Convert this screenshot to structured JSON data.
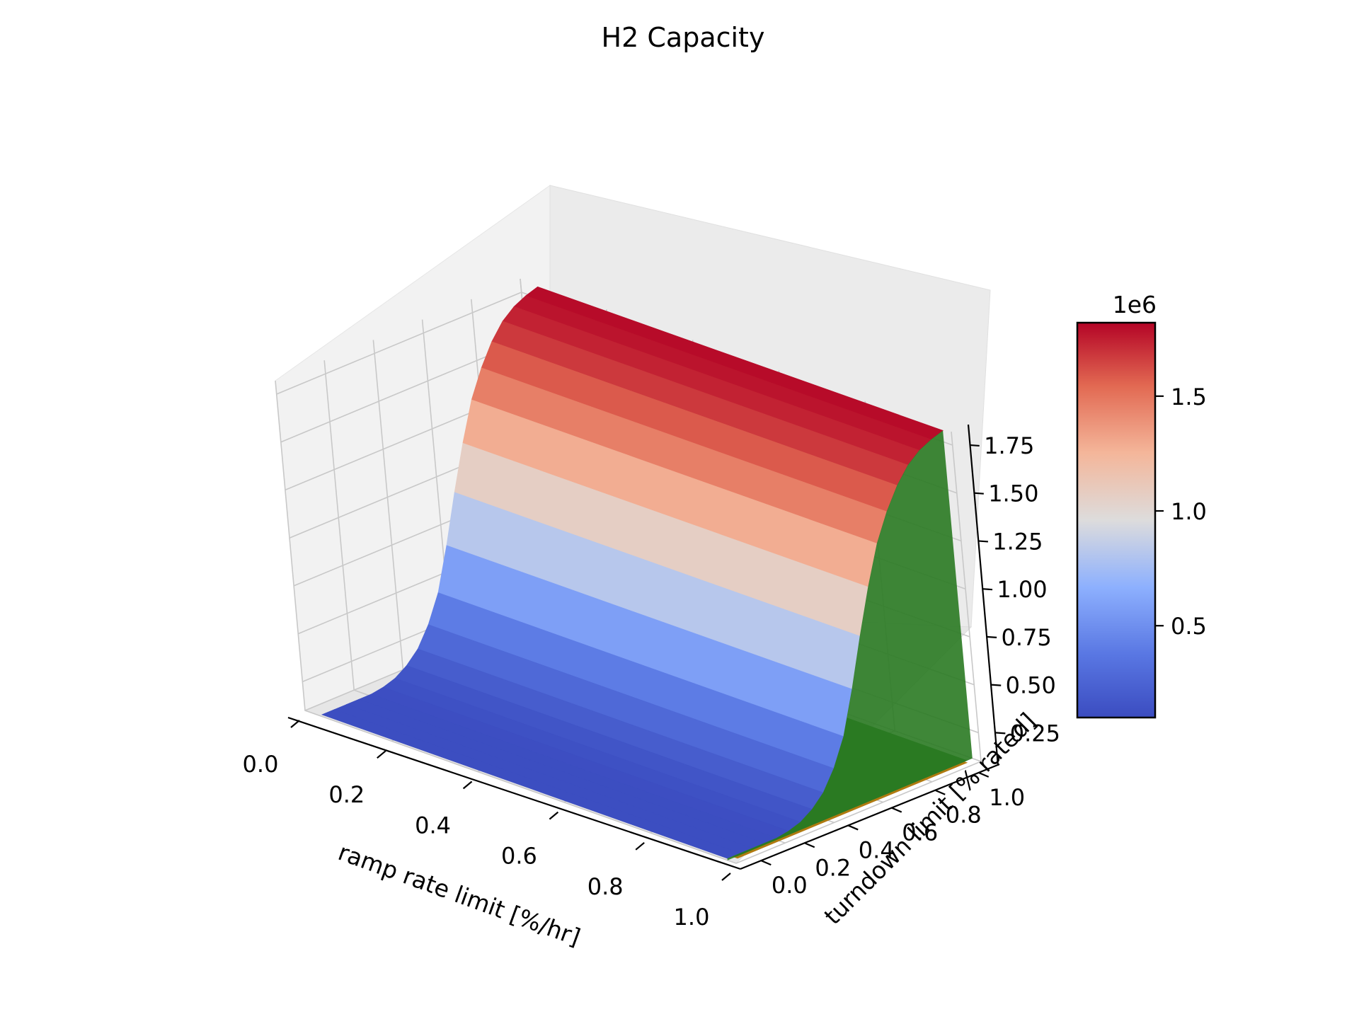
{
  "chart_data": {
    "type": "surface3d",
    "title": "H2 Capacity",
    "xlabel": "ramp rate limit [%/hr]",
    "ylabel": "turndown limit [% rated]",
    "zlabel": "",
    "x_ticks": [
      "0.0",
      "0.2",
      "0.4",
      "0.6",
      "0.8",
      "1.0"
    ],
    "y_ticks": [
      "0.0",
      "0.2",
      "0.4",
      "0.6",
      "0.8",
      "1.0"
    ],
    "z_ticks": [
      "0.25",
      "0.50",
      "0.75",
      "1.00",
      "1.25",
      "1.50",
      "1.75"
    ],
    "z_tick_values": [
      0.25,
      0.5,
      0.75,
      1.0,
      1.25,
      1.5,
      1.75
    ],
    "z_multiplier_label": "1e6",
    "xlim": [
      0,
      1
    ],
    "ylim": [
      0,
      1
    ],
    "zlim": [
      0.1,
      1.82
    ],
    "surface_y": [
      0.0,
      0.05,
      0.1,
      0.15,
      0.2,
      0.25,
      0.3,
      0.35,
      0.4,
      0.45,
      0.5,
      0.55,
      0.6,
      0.65,
      0.7,
      0.75,
      0.8,
      0.85,
      0.9,
      0.95,
      1.0
    ],
    "surface_z": [
      0.11,
      0.11,
      0.11,
      0.11,
      0.11,
      0.12,
      0.14,
      0.18,
      0.24,
      0.34,
      0.48,
      0.7,
      0.95,
      1.18,
      1.38,
      1.52,
      1.63,
      1.71,
      1.76,
      1.79,
      1.81
    ],
    "flat_plane_z": 0.1,
    "colorbar": {
      "label": "",
      "colormap": "coolwarm",
      "min": 0.1,
      "max": 1.82,
      "ticks": [
        "0.5",
        "1.0",
        "1.5"
      ],
      "tick_values": [
        0.5,
        1.0,
        1.5
      ],
      "colors": [
        "#3b4cc0",
        "#6688ee",
        "#aac7fd",
        "#dddddd",
        "#f7b89c",
        "#e7745b",
        "#b40426"
      ]
    },
    "plane_color": "#2a7a22",
    "plane_edge_color": "#b07a10",
    "grid": true
  }
}
